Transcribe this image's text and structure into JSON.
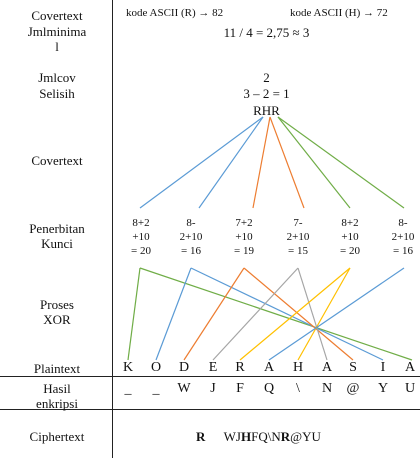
{
  "labels": {
    "covertext": "Covertext",
    "jmlminimal": "Jmlminima\nl",
    "jmlcov": "Jmlcov",
    "selisih": "Selisih",
    "covertext2": "Covertext",
    "penerbitan": "Penerbitan\nKunci",
    "proses": "Proses\nXOR",
    "plaintext": "Plaintext",
    "hasil": "Hasil\nenkripsi",
    "ciphertext": "Ciphertext"
  },
  "header": {
    "ascii_r": "kode ASCII (R) → 82",
    "ascii_h": "kode ASCII (H) → 72"
  },
  "values": {
    "jmlminimal": "11 / 4 = 2,75 ≈ 3",
    "jmlcov": "2",
    "selisih": "3 – 2 = 1",
    "key_text": "RHR"
  },
  "keys": [
    {
      "l1": "8+2",
      "l2": "+10",
      "l3": "= 20"
    },
    {
      "l1": "8-",
      "l2": "2+10",
      "l3": "= 16"
    },
    {
      "l1": "7+2",
      "l2": "+10",
      "l3": "= 19"
    },
    {
      "l1": "7-",
      "l2": "2+10",
      "l3": "= 15"
    },
    {
      "l1": "8+2",
      "l2": "+10",
      "l3": "= 20"
    },
    {
      "l1": "8-",
      "l2": "2+10",
      "l3": "= 16"
    }
  ],
  "plaintext": [
    "K",
    "O",
    "D",
    "E",
    "R",
    "A",
    "H",
    "A",
    "S",
    "I",
    "A"
  ],
  "hasil": [
    "_",
    "_",
    "W",
    "J",
    "F",
    "Q",
    "\\",
    "N",
    "@",
    "Y",
    "U"
  ],
  "ciphertext": {
    "prefix": "R",
    "body": "WJ",
    "bold_h": "H",
    "mid": "FQ\\N",
    "bold_r": "R",
    "tail": "@YU"
  },
  "colors": {
    "blue": "#5b9bd5",
    "orange": "#ed7d31",
    "green": "#70ad47",
    "gray": "#a5a5a5",
    "yellow": "#ffc000"
  }
}
